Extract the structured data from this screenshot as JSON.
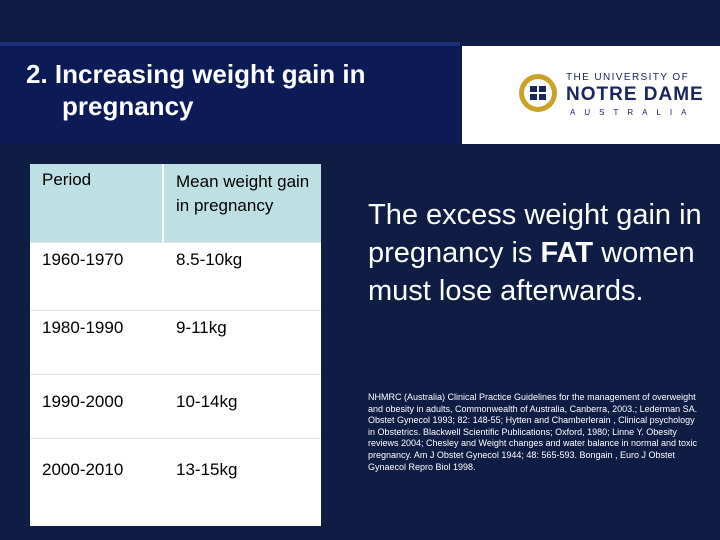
{
  "slide": {
    "title_line1": "2. Increasing weight gain in",
    "title_line2": "pregnancy"
  },
  "logo": {
    "line1": "THE UNIVERSITY OF",
    "line2": "NOTRE DAME",
    "line3": "AUSTRALIA"
  },
  "table": {
    "headers": [
      "Period",
      "Mean weight gain in pregnancy"
    ],
    "rows": [
      {
        "period": "1960-1970",
        "gain": "8.5-10kg"
      },
      {
        "period": "1980-1990",
        "gain": "9-11kg"
      },
      {
        "period": "1990-2000",
        "gain": "10-14kg"
      },
      {
        "period": "2000-2010",
        "gain": "13-15kg"
      }
    ]
  },
  "statement": {
    "part1": "The excess weight gain in pregnancy is",
    "fat": "FAT",
    "part2": "women must lose afterwards."
  },
  "references": "NHMRC (Australia) Clinical Practice Guidelines for the management of overweight and obesity in adults, Commonwealth of Australia, Canberra, 2003.; Lederman SA. Obstet Gynecol 1993; 82: 148-55; Hytten and Chamberlerain , Clinical psychology in Obstetrics. Blackwell Scientific Publications; Oxford, 1980; Linne Y. Obesity reviews 2004; Chesley and Weight changes and water balance in normal and toxic pregnancy. Am J Obstet Gynecol 1944; 48: 565-593. Bongain , Euro J Obstet Gynaecol Repro Biol 1998."
}
